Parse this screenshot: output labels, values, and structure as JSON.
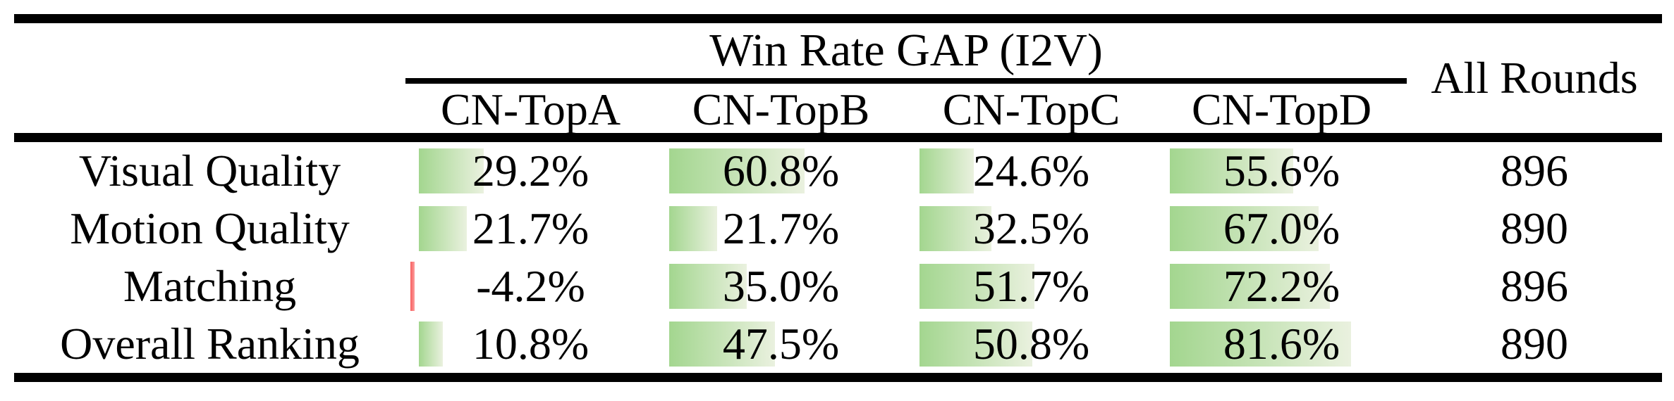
{
  "table": {
    "group_header": "Win Rate GAP (I2V)",
    "all_rounds_header": "All Rounds",
    "columns": [
      "CN-TopA",
      "CN-TopB",
      "CN-TopC",
      "CN-TopD"
    ],
    "rows": [
      {
        "label": "Visual Quality",
        "cells": [
          {
            "text": "29.2%",
            "value": 29.2
          },
          {
            "text": "60.8%",
            "value": 60.8
          },
          {
            "text": "24.6%",
            "value": 24.6
          },
          {
            "text": "55.6%",
            "value": 55.6
          }
        ],
        "all_rounds": "896"
      },
      {
        "label": "Motion Quality",
        "cells": [
          {
            "text": "21.7%",
            "value": 21.7
          },
          {
            "text": "21.7%",
            "value": 21.7
          },
          {
            "text": "32.5%",
            "value": 32.5
          },
          {
            "text": "67.0%",
            "value": 67.0
          }
        ],
        "all_rounds": "890"
      },
      {
        "label": "Matching",
        "cells": [
          {
            "text": "-4.2%",
            "value": -4.2
          },
          {
            "text": "35.0%",
            "value": 35.0
          },
          {
            "text": "51.7%",
            "value": 51.7
          },
          {
            "text": "72.2%",
            "value": 72.2
          }
        ],
        "all_rounds": "896"
      },
      {
        "label": "Overall Ranking",
        "cells": [
          {
            "text": "10.8%",
            "value": 10.8
          },
          {
            "text": "47.5%",
            "value": 47.5
          },
          {
            "text": "50.8%",
            "value": 50.8
          },
          {
            "text": "81.6%",
            "value": 81.6
          }
        ],
        "all_rounds": "890"
      }
    ],
    "colors": {
      "bar_positive_start": "#a3d68f",
      "bar_positive_end": "#eaf1df",
      "bar_negative_start": "#f75f5f",
      "bar_negative_end": "#fc9e9e"
    }
  },
  "chart_data": {
    "type": "table",
    "title": "Win Rate GAP (I2V)",
    "categories": [
      "Visual Quality",
      "Motion Quality",
      "Matching",
      "Overall Ranking"
    ],
    "series": [
      {
        "name": "CN-TopA",
        "values": [
          29.2,
          21.7,
          -4.2,
          10.8
        ]
      },
      {
        "name": "CN-TopB",
        "values": [
          60.8,
          21.7,
          35.0,
          47.5
        ]
      },
      {
        "name": "CN-TopC",
        "values": [
          24.6,
          32.5,
          51.7,
          50.8
        ]
      },
      {
        "name": "CN-TopD",
        "values": [
          55.6,
          67.0,
          72.2,
          81.6
        ]
      }
    ],
    "all_rounds_column": {
      "name": "All Rounds",
      "values": [
        896,
        890,
        896,
        890
      ]
    },
    "units": "%"
  }
}
